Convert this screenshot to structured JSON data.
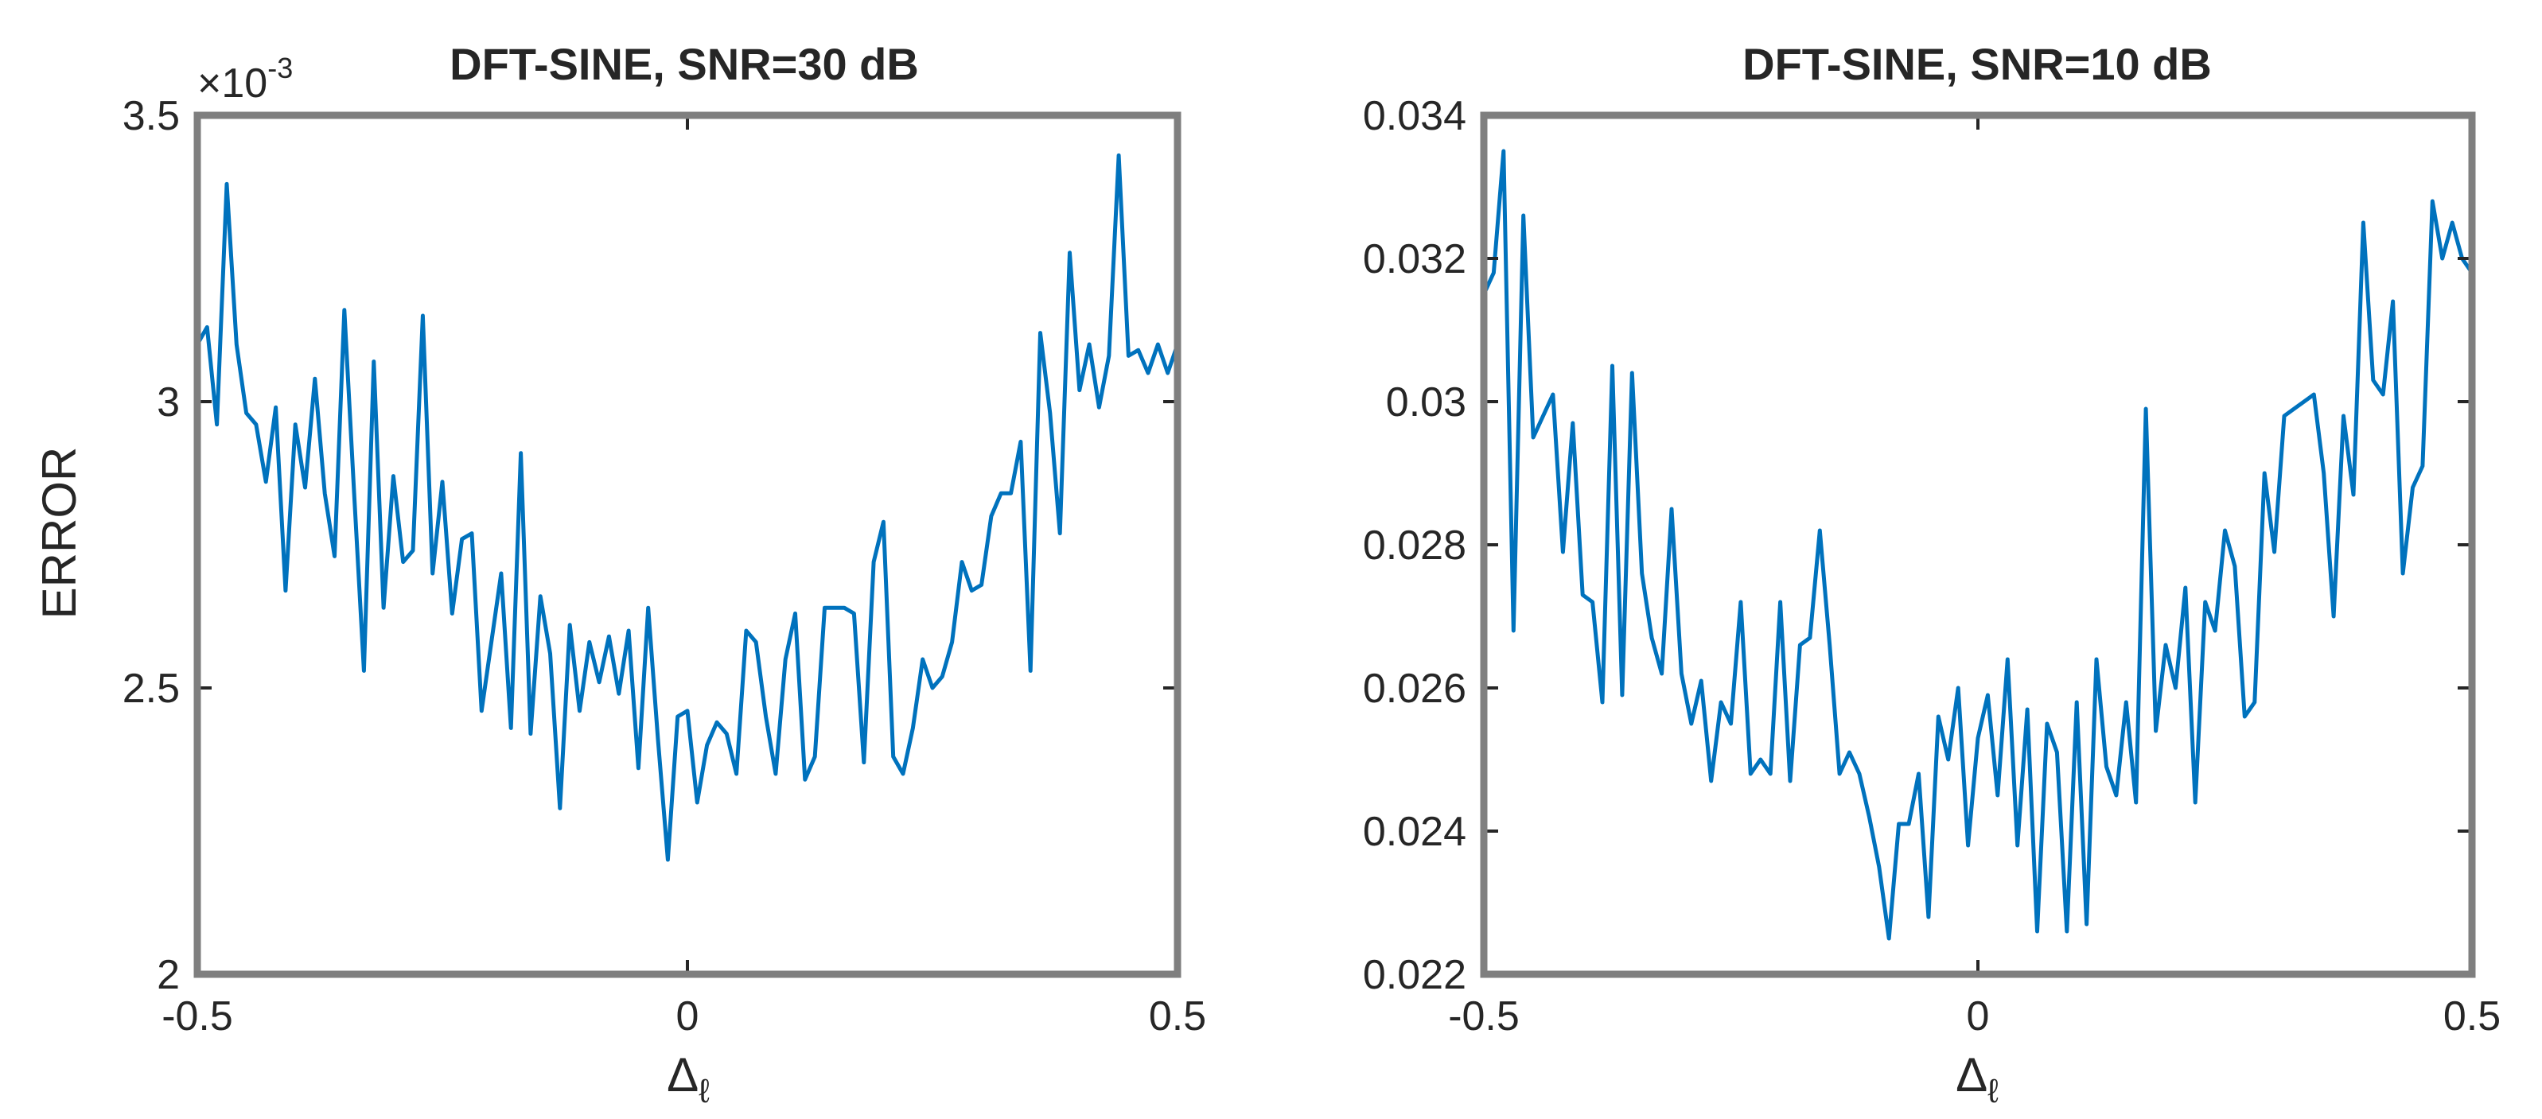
{
  "chart_data": [
    {
      "type": "line",
      "title": "DFT-SINE, SNR=30 dB",
      "xlabel": "Δ",
      "xlabel_sub": "ℓ",
      "ylabel": "ERROR",
      "y_exponent_label": "×10",
      "y_exponent_power": "-3",
      "xlim": [
        -0.5,
        0.5
      ],
      "ylim": [
        2.0,
        3.5
      ],
      "x_ticks": [
        -0.5,
        0,
        0.5
      ],
      "x_tick_labels": [
        "-0.5",
        "0",
        "0.5"
      ],
      "y_ticks": [
        2.0,
        2.5,
        3.0,
        3.5
      ],
      "y_tick_labels": [
        "2",
        "2.5",
        "3",
        "3.5"
      ],
      "grid": false,
      "color": "#0072BD",
      "y_units_scale": "1e-3",
      "series": [
        {
          "x": [
            -0.5,
            -0.49,
            -0.48,
            -0.47,
            -0.46,
            -0.45,
            -0.44,
            -0.43,
            -0.42,
            -0.41,
            -0.4,
            -0.39,
            -0.38,
            -0.37,
            -0.36,
            -0.35,
            -0.34,
            -0.33,
            -0.32,
            -0.31,
            -0.3,
            -0.29,
            -0.28,
            -0.27,
            -0.26,
            -0.25,
            -0.24,
            -0.23,
            -0.22,
            -0.21,
            -0.2,
            -0.19,
            -0.18,
            -0.17,
            -0.16,
            -0.15,
            -0.14,
            -0.13,
            -0.12,
            -0.11,
            -0.1,
            -0.09,
            -0.08,
            -0.07,
            -0.06,
            -0.05,
            -0.04,
            -0.03,
            -0.02,
            -0.01,
            0.0,
            0.01,
            0.02,
            0.03,
            0.04,
            0.05,
            0.06,
            0.07,
            0.08,
            0.09,
            0.1,
            0.11,
            0.12,
            0.13,
            0.14,
            0.15,
            0.16,
            0.17,
            0.18,
            0.19,
            0.2,
            0.21,
            0.22,
            0.23,
            0.24,
            0.25,
            0.26,
            0.27,
            0.28,
            0.29,
            0.3,
            0.31,
            0.32,
            0.33,
            0.34,
            0.35,
            0.36,
            0.37,
            0.38,
            0.39,
            0.4,
            0.41,
            0.42,
            0.43,
            0.44,
            0.45,
            0.46,
            0.47,
            0.48,
            0.49,
            0.5
          ],
          "y": [
            3.1,
            3.13,
            2.96,
            3.38,
            3.1,
            2.98,
            2.96,
            2.86,
            2.99,
            2.67,
            2.96,
            2.85,
            3.04,
            2.84,
            2.73,
            3.16,
            2.84,
            2.53,
            3.07,
            2.64,
            2.87,
            2.72,
            2.74,
            3.15,
            2.7,
            2.86,
            2.63,
            2.76,
            2.77,
            2.46,
            2.58,
            2.7,
            2.43,
            2.91,
            2.42,
            2.66,
            2.56,
            2.29,
            2.61,
            2.46,
            2.58,
            2.51,
            2.59,
            2.49,
            2.6,
            2.36,
            2.64,
            2.41,
            2.2,
            2.45,
            2.46,
            2.3,
            2.4,
            2.44,
            2.42,
            2.35,
            2.6,
            2.58,
            2.45,
            2.35,
            2.55,
            2.63,
            2.34,
            2.38,
            2.64,
            2.64,
            2.64,
            2.63,
            2.37,
            2.72,
            2.79,
            2.38,
            2.35,
            2.43,
            2.55,
            2.5,
            2.52,
            2.58,
            2.72,
            2.67,
            2.68,
            2.8,
            2.84,
            2.84,
            2.93,
            2.53,
            3.12,
            2.98,
            2.77,
            3.26,
            3.02,
            3.1,
            2.99,
            3.08,
            3.43,
            3.08,
            3.09,
            3.05,
            3.1,
            3.05,
            3.1
          ]
        }
      ]
    },
    {
      "type": "line",
      "title": "DFT-SINE, SNR=10 dB",
      "xlabel": "Δ",
      "xlabel_sub": "ℓ",
      "ylabel": "",
      "xlim": [
        -0.5,
        0.5
      ],
      "ylim": [
        0.022,
        0.034
      ],
      "x_ticks": [
        -0.5,
        0,
        0.5
      ],
      "x_tick_labels": [
        "-0.5",
        "0",
        "0.5"
      ],
      "y_ticks": [
        0.022,
        0.024,
        0.026,
        0.028,
        0.03,
        0.032,
        0.034
      ],
      "y_tick_labels": [
        "0.022",
        "0.024",
        "0.026",
        "0.028",
        "0.03",
        "0.032",
        "0.034"
      ],
      "grid": false,
      "color": "#0072BD",
      "series": [
        {
          "x": [
            -0.5,
            -0.49,
            -0.48,
            -0.47,
            -0.46,
            -0.45,
            -0.44,
            -0.43,
            -0.42,
            -0.41,
            -0.4,
            -0.39,
            -0.38,
            -0.37,
            -0.36,
            -0.35,
            -0.34,
            -0.33,
            -0.32,
            -0.31,
            -0.3,
            -0.29,
            -0.28,
            -0.27,
            -0.26,
            -0.25,
            -0.24,
            -0.23,
            -0.22,
            -0.21,
            -0.2,
            -0.19,
            -0.18,
            -0.17,
            -0.16,
            -0.15,
            -0.14,
            -0.13,
            -0.12,
            -0.11,
            -0.1,
            -0.09,
            -0.08,
            -0.07,
            -0.06,
            -0.05,
            -0.04,
            -0.03,
            -0.02,
            -0.01,
            0.0,
            0.01,
            0.02,
            0.03,
            0.04,
            0.05,
            0.06,
            0.07,
            0.08,
            0.09,
            0.1,
            0.11,
            0.12,
            0.13,
            0.14,
            0.15,
            0.16,
            0.17,
            0.18,
            0.19,
            0.2,
            0.21,
            0.22,
            0.23,
            0.24,
            0.25,
            0.26,
            0.27,
            0.28,
            0.29,
            0.3,
            0.31,
            0.32,
            0.33,
            0.34,
            0.35,
            0.36,
            0.37,
            0.38,
            0.39,
            0.4,
            0.41,
            0.42,
            0.43,
            0.44,
            0.45,
            0.46,
            0.47,
            0.48,
            0.49,
            0.5
          ],
          "y": [
            0.0315,
            0.0318,
            0.0335,
            0.0268,
            0.0326,
            0.0295,
            0.0298,
            0.0301,
            0.0279,
            0.0297,
            0.0273,
            0.0272,
            0.0258,
            0.0305,
            0.0259,
            0.0304,
            0.0276,
            0.0267,
            0.0262,
            0.0285,
            0.0262,
            0.0255,
            0.0261,
            0.0247,
            0.0258,
            0.0255,
            0.0272,
            0.0248,
            0.025,
            0.0248,
            0.0272,
            0.0247,
            0.0266,
            0.0267,
            0.0282,
            0.0266,
            0.0248,
            0.0251,
            0.0248,
            0.0242,
            0.0235,
            0.0225,
            0.0241,
            0.0241,
            0.0248,
            0.0228,
            0.0256,
            0.025,
            0.026,
            0.0238,
            0.0253,
            0.0259,
            0.0245,
            0.0264,
            0.0238,
            0.0257,
            0.0226,
            0.0255,
            0.0251,
            0.0226,
            0.0258,
            0.0227,
            0.0264,
            0.0249,
            0.0245,
            0.0258,
            0.0244,
            0.0299,
            0.0254,
            0.0266,
            0.026,
            0.0274,
            0.0244,
            0.0272,
            0.0268,
            0.0282,
            0.0277,
            0.0256,
            0.0258,
            0.029,
            0.0279,
            0.0298,
            0.0299,
            0.03,
            0.0301,
            0.029,
            0.027,
            0.0298,
            0.0287,
            0.0325,
            0.0303,
            0.0301,
            0.0314,
            0.0276,
            0.0288,
            0.0291,
            0.0328,
            0.032,
            0.0325,
            0.032,
            0.0318
          ]
        }
      ]
    }
  ]
}
